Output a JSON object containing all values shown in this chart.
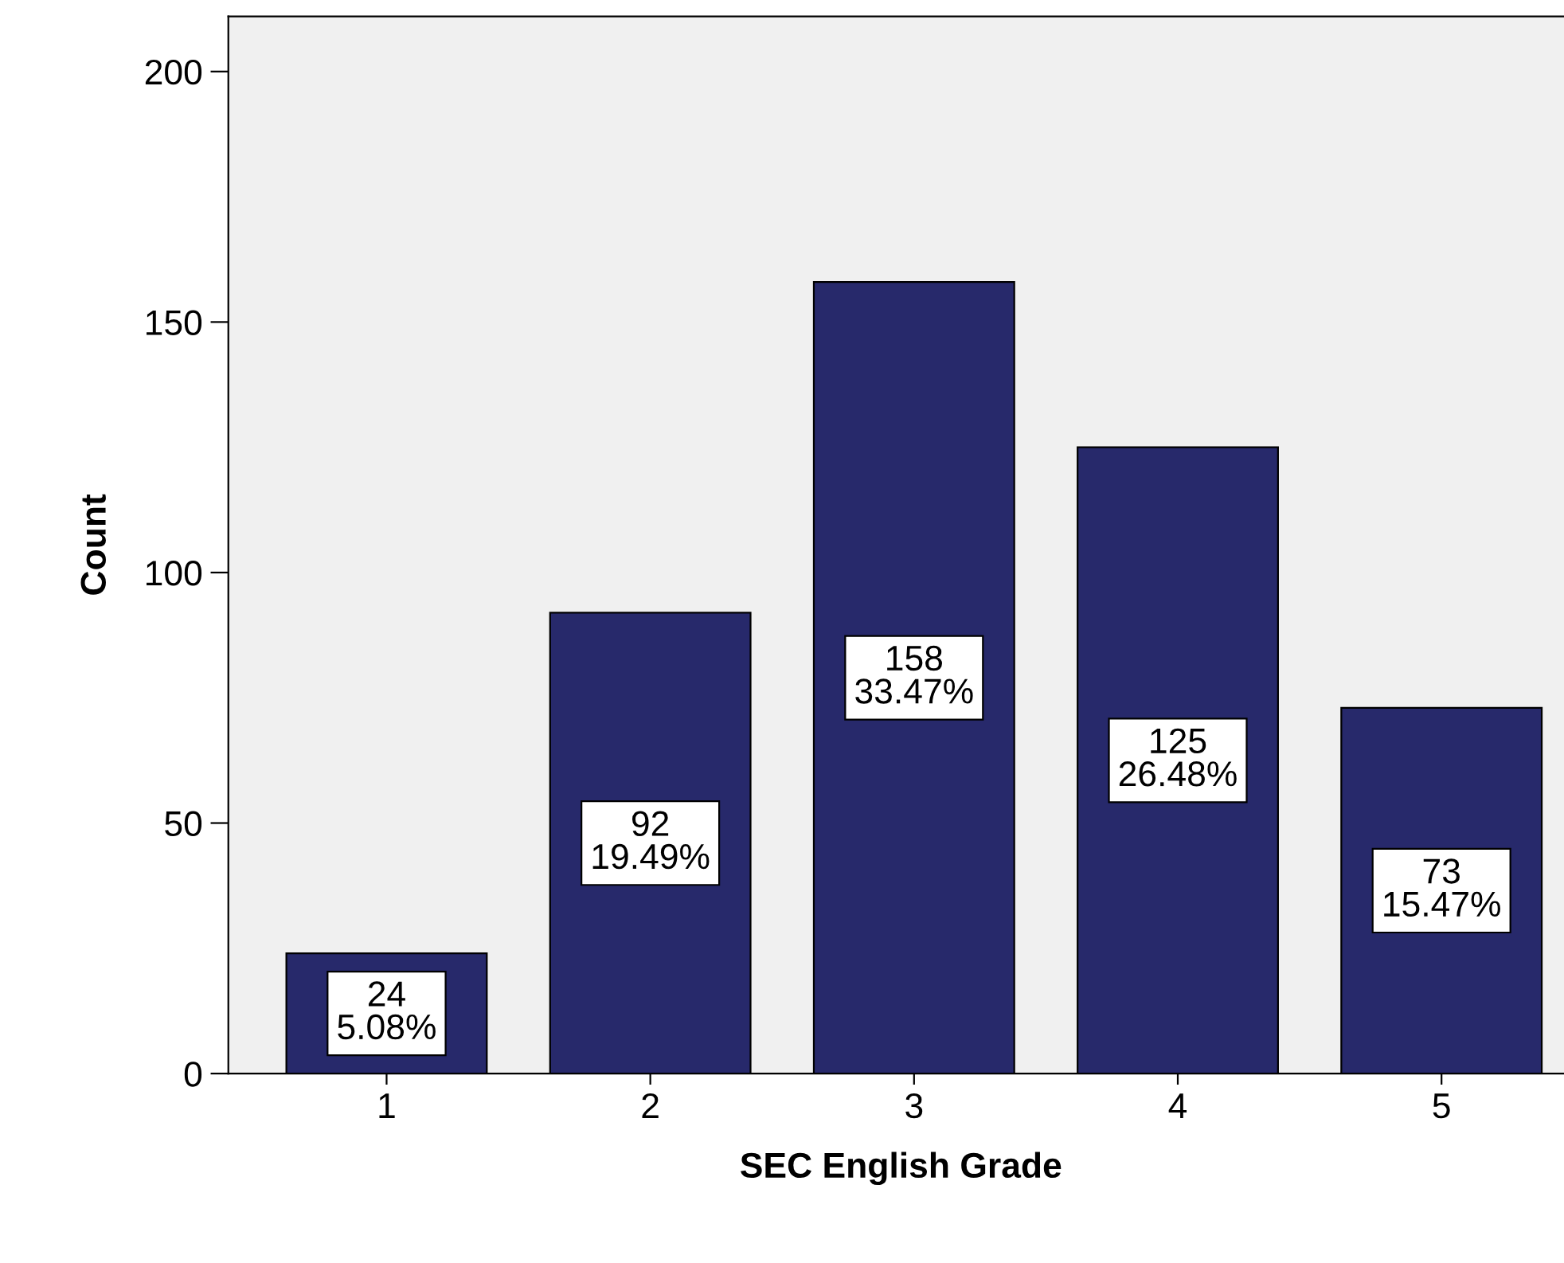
{
  "chart_data": {
    "type": "bar",
    "xlabel": "SEC English Grade",
    "ylabel": "Count",
    "categories": [
      "1",
      "2",
      "3",
      "4",
      "5"
    ],
    "values": [
      24,
      92,
      158,
      125,
      73
    ],
    "value_labels": [
      "24\n5.08%",
      "92\n19.49%",
      "158\n33.47%",
      "125\n26.48%",
      "73\n15.47%"
    ],
    "color": "#27296b",
    "ylim": [
      0,
      211
    ],
    "yticks": [
      0,
      50,
      100,
      150,
      200
    ],
    "grid": false,
    "legend": false
  }
}
